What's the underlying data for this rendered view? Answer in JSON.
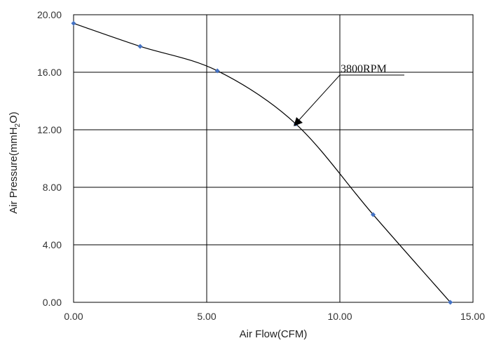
{
  "chart_data": {
    "type": "line",
    "title": "",
    "xlabel": "Air Flow(CFM)",
    "ylabel": "Air Pressure(mmH",
    "ylabel_sub": "2",
    "ylabel_end": "O)",
    "xlim": [
      0,
      15
    ],
    "ylim": [
      0,
      20
    ],
    "x_ticks": [
      "0.00",
      "5.00",
      "10.00",
      "15.00"
    ],
    "y_ticks": [
      "0.00",
      "4.00",
      "8.00",
      "12.00",
      "16.00",
      "20.00"
    ],
    "grid": true,
    "series": [
      {
        "color": "#4472c4",
        "x": [
          0.0,
          2.5,
          5.4,
          8.35,
          11.25,
          14.15
        ],
        "y": [
          19.4,
          17.8,
          16.1,
          12.4,
          6.1,
          0.0
        ]
      }
    ],
    "annotations": [
      {
        "text": "3800RPM",
        "points_to_series_index": 3
      }
    ]
  }
}
